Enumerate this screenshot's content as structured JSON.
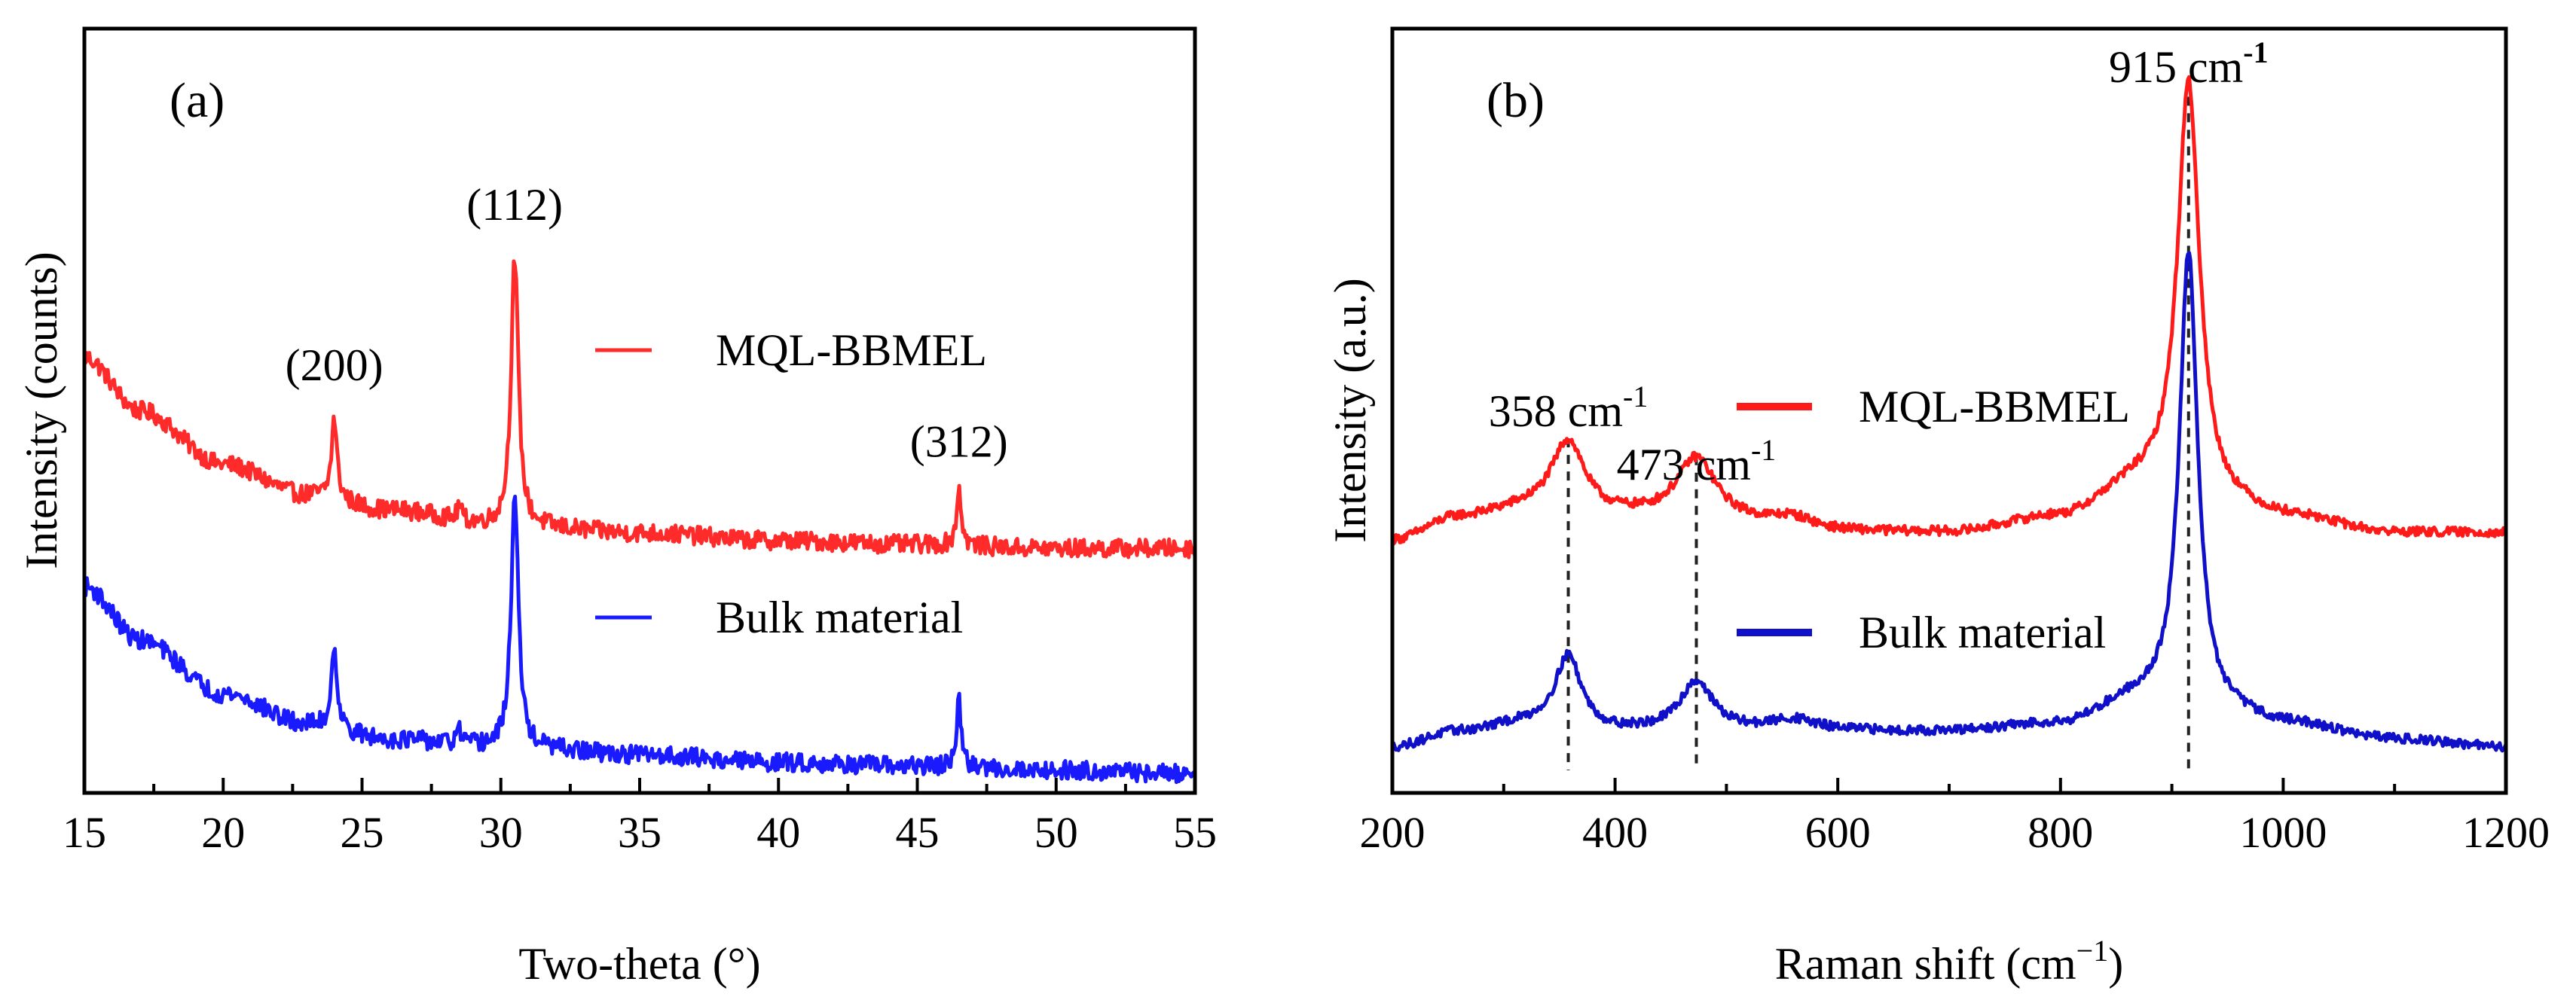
{
  "chart_data": [
    {
      "panel": "(a)",
      "type": "line",
      "xlabel": "Two-theta (°)",
      "ylabel": "Intensity (counts)",
      "xlim": [
        15,
        55
      ],
      "xticks": [
        15,
        20,
        25,
        30,
        35,
        40,
        45,
        50,
        55
      ],
      "ylim": [
        0,
        100
      ],
      "yticks_shown": false,
      "legend_position": "center-right",
      "series": [
        {
          "name": "MQL-BBMEL",
          "color": "#ff2a2a",
          "baseline": [
            [
              15,
              57
            ],
            [
              17,
              50
            ],
            [
              20,
              43
            ],
            [
              23,
              39
            ],
            [
              26,
              37
            ],
            [
              30,
              35
            ],
            [
              35,
              34
            ],
            [
              40,
              33
            ],
            [
              45,
              32.5
            ],
            [
              50,
              32
            ],
            [
              55,
              32
            ]
          ],
          "peaks": [
            [
              24.0,
              10.5,
              0.12
            ],
            [
              28.5,
              2.0,
              0.08
            ],
            [
              30.5,
              35,
              0.16
            ],
            [
              46.5,
              7.5,
              0.1
            ]
          ],
          "noise": 1.2
        },
        {
          "name": "Bulk material",
          "color": "#1a1aff",
          "baseline": [
            [
              15,
              27
            ],
            [
              17,
              20
            ],
            [
              20,
              13
            ],
            [
              23,
              9
            ],
            [
              26,
              7
            ],
            [
              30,
              6
            ],
            [
              35,
              5
            ],
            [
              40,
              4
            ],
            [
              45,
              3.5
            ],
            [
              50,
              3
            ],
            [
              55,
              2.5
            ]
          ],
          "peaks": [
            [
              24.0,
              11,
              0.12
            ],
            [
              28.5,
              2.0,
              0.08
            ],
            [
              30.5,
              33,
              0.16
            ],
            [
              46.5,
              8.5,
              0.1
            ]
          ],
          "noise": 1.2
        }
      ],
      "annotations": [
        {
          "text": "(200)",
          "x": 24.0,
          "y": 54
        },
        {
          "text": "(112)",
          "x": 30.5,
          "y": 75
        },
        {
          "text": "(312)",
          "x": 46.5,
          "y": 44
        }
      ]
    },
    {
      "panel": "(b)",
      "type": "line",
      "xlabel_main": "Raman shift (cm",
      "xlabel_sup": "−1",
      "xlabel_close": ")",
      "ylabel": "Intensity (a.u.)",
      "xlim": [
        200,
        1200
      ],
      "xticks": [
        200,
        400,
        600,
        800,
        1000,
        1200
      ],
      "ylim": [
        0,
        100
      ],
      "yticks_shown": false,
      "legend_position": "center-right",
      "series": [
        {
          "name": "MQL-BBMEL",
          "color": "#ff1a1a",
          "baseline": [
            [
              200,
              33
            ],
            [
              260,
              36
            ],
            [
              320,
              37
            ],
            [
              400,
              36
            ],
            [
              500,
              35
            ],
            [
              600,
              34
            ],
            [
              700,
              34
            ],
            [
              800,
              36
            ],
            [
              870,
              40
            ],
            [
              950,
              37
            ],
            [
              1000,
              36
            ],
            [
              1100,
              34
            ],
            [
              1200,
              34
            ]
          ],
          "peaks": [
            [
              358,
              9.5,
              18
            ],
            [
              473,
              8.5,
              22
            ],
            [
              560,
              1.5,
              25
            ],
            [
              915,
              55,
              12
            ]
          ],
          "noise": 0.6
        },
        {
          "name": "Bulk material",
          "color": "#1010c8",
          "baseline": [
            [
              200,
              6
            ],
            [
              260,
              8
            ],
            [
              320,
              9
            ],
            [
              400,
              8
            ],
            [
              500,
              8
            ],
            [
              600,
              8
            ],
            [
              700,
              8
            ],
            [
              800,
              9
            ],
            [
              870,
              12
            ],
            [
              950,
              10
            ],
            [
              1000,
              9
            ],
            [
              1100,
              7
            ],
            [
              1200,
              6
            ]
          ],
          "peaks": [
            [
              358,
              9.5,
              14
            ],
            [
              473,
              6.5,
              18
            ],
            [
              560,
              1.5,
              25
            ],
            [
              915,
              60,
              10
            ]
          ],
          "noise": 0.6
        }
      ],
      "annotations": [
        {
          "text": "358 cm",
          "sup": "-1",
          "x": 358,
          "y": 48,
          "anchor": "middle",
          "weight": "normal"
        },
        {
          "text": "473 cm",
          "sup": "-1",
          "x": 473,
          "y": 41,
          "anchor": "middle",
          "weight": "normal"
        },
        {
          "text": "915 cm",
          "sup": "-1",
          "x": 915,
          "y": 93,
          "anchor": "middle",
          "weight": "bold"
        }
      ],
      "guides": [
        358,
        473,
        915
      ]
    }
  ]
}
